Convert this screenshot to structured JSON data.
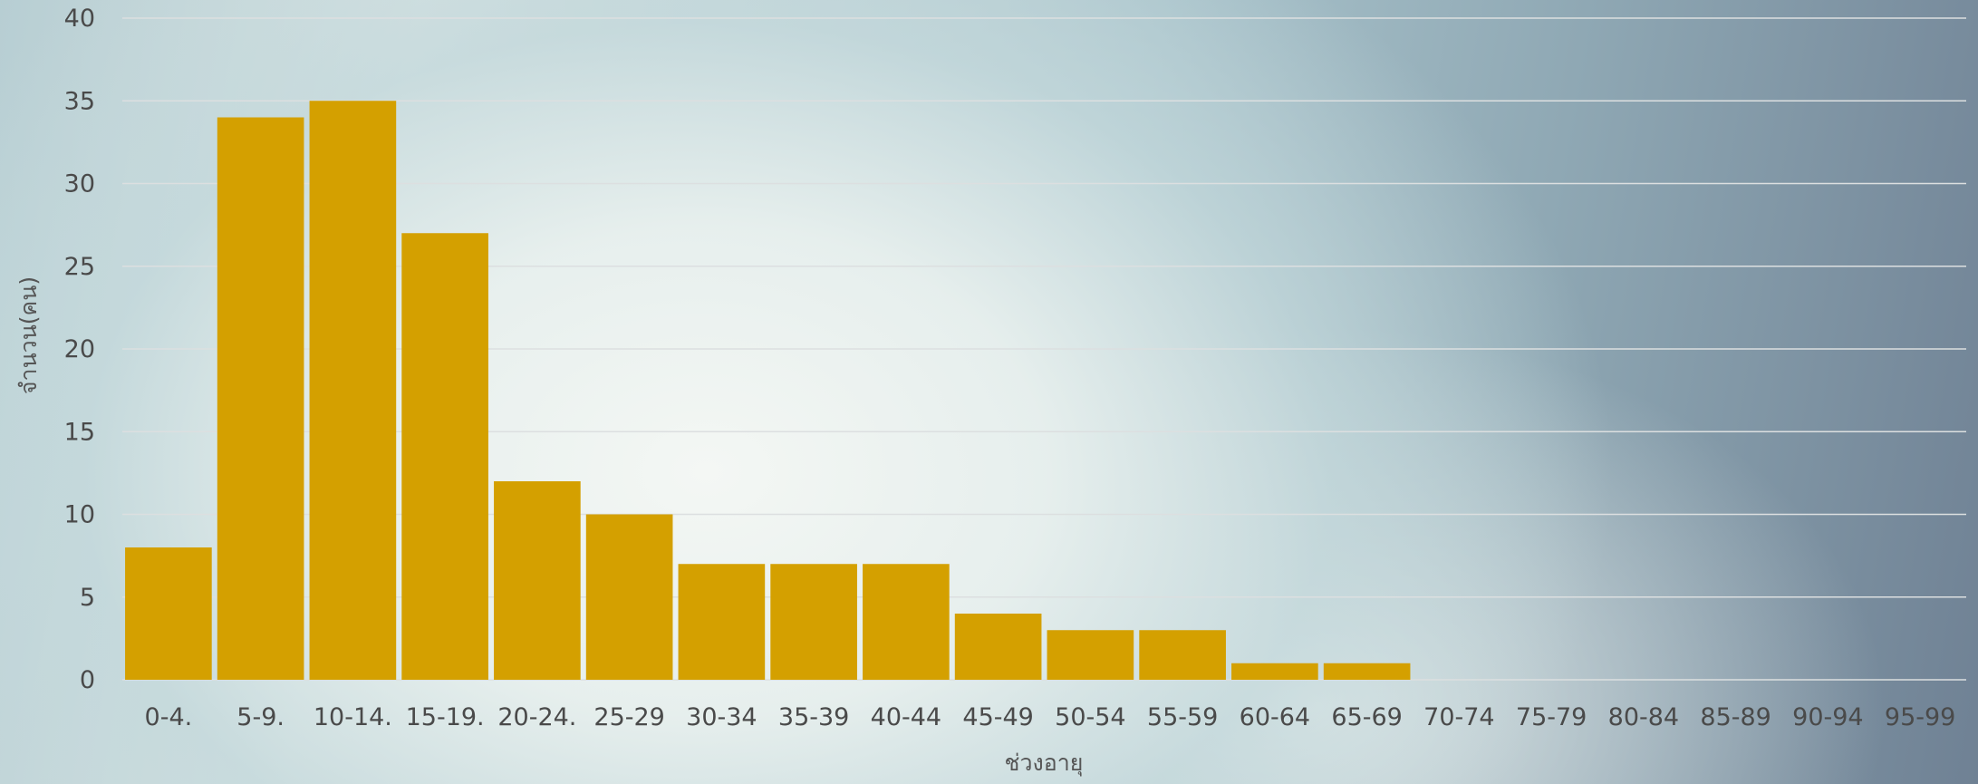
{
  "chart_data": {
    "type": "bar",
    "title": "",
    "xlabel": "ช่วงอายุ",
    "ylabel": "จำนวน(คน)",
    "ylim": [
      0,
      40
    ],
    "y_ticks": [
      0,
      5,
      10,
      15,
      20,
      25,
      30,
      35,
      40
    ],
    "grid": true,
    "legend": "none",
    "categories": [
      "0-4.",
      "5-9.",
      "10-14.",
      "15-19.",
      "20-24.",
      "25-29",
      "30-34",
      "35-39",
      "40-44",
      "45-49",
      "50-54",
      "55-59",
      "60-64",
      "65-69",
      "70-74",
      "75-79",
      "80-84",
      "85-89",
      "90-94",
      "95-99"
    ],
    "values": [
      8,
      34,
      35,
      27,
      12,
      10,
      7,
      7,
      7,
      4,
      3,
      3,
      1,
      1,
      0,
      0,
      0,
      0,
      0,
      0
    ],
    "colors": {
      "bar": "#D4A000",
      "grid": "#dcdfe0",
      "tick_text": "#4a4a4a"
    }
  }
}
